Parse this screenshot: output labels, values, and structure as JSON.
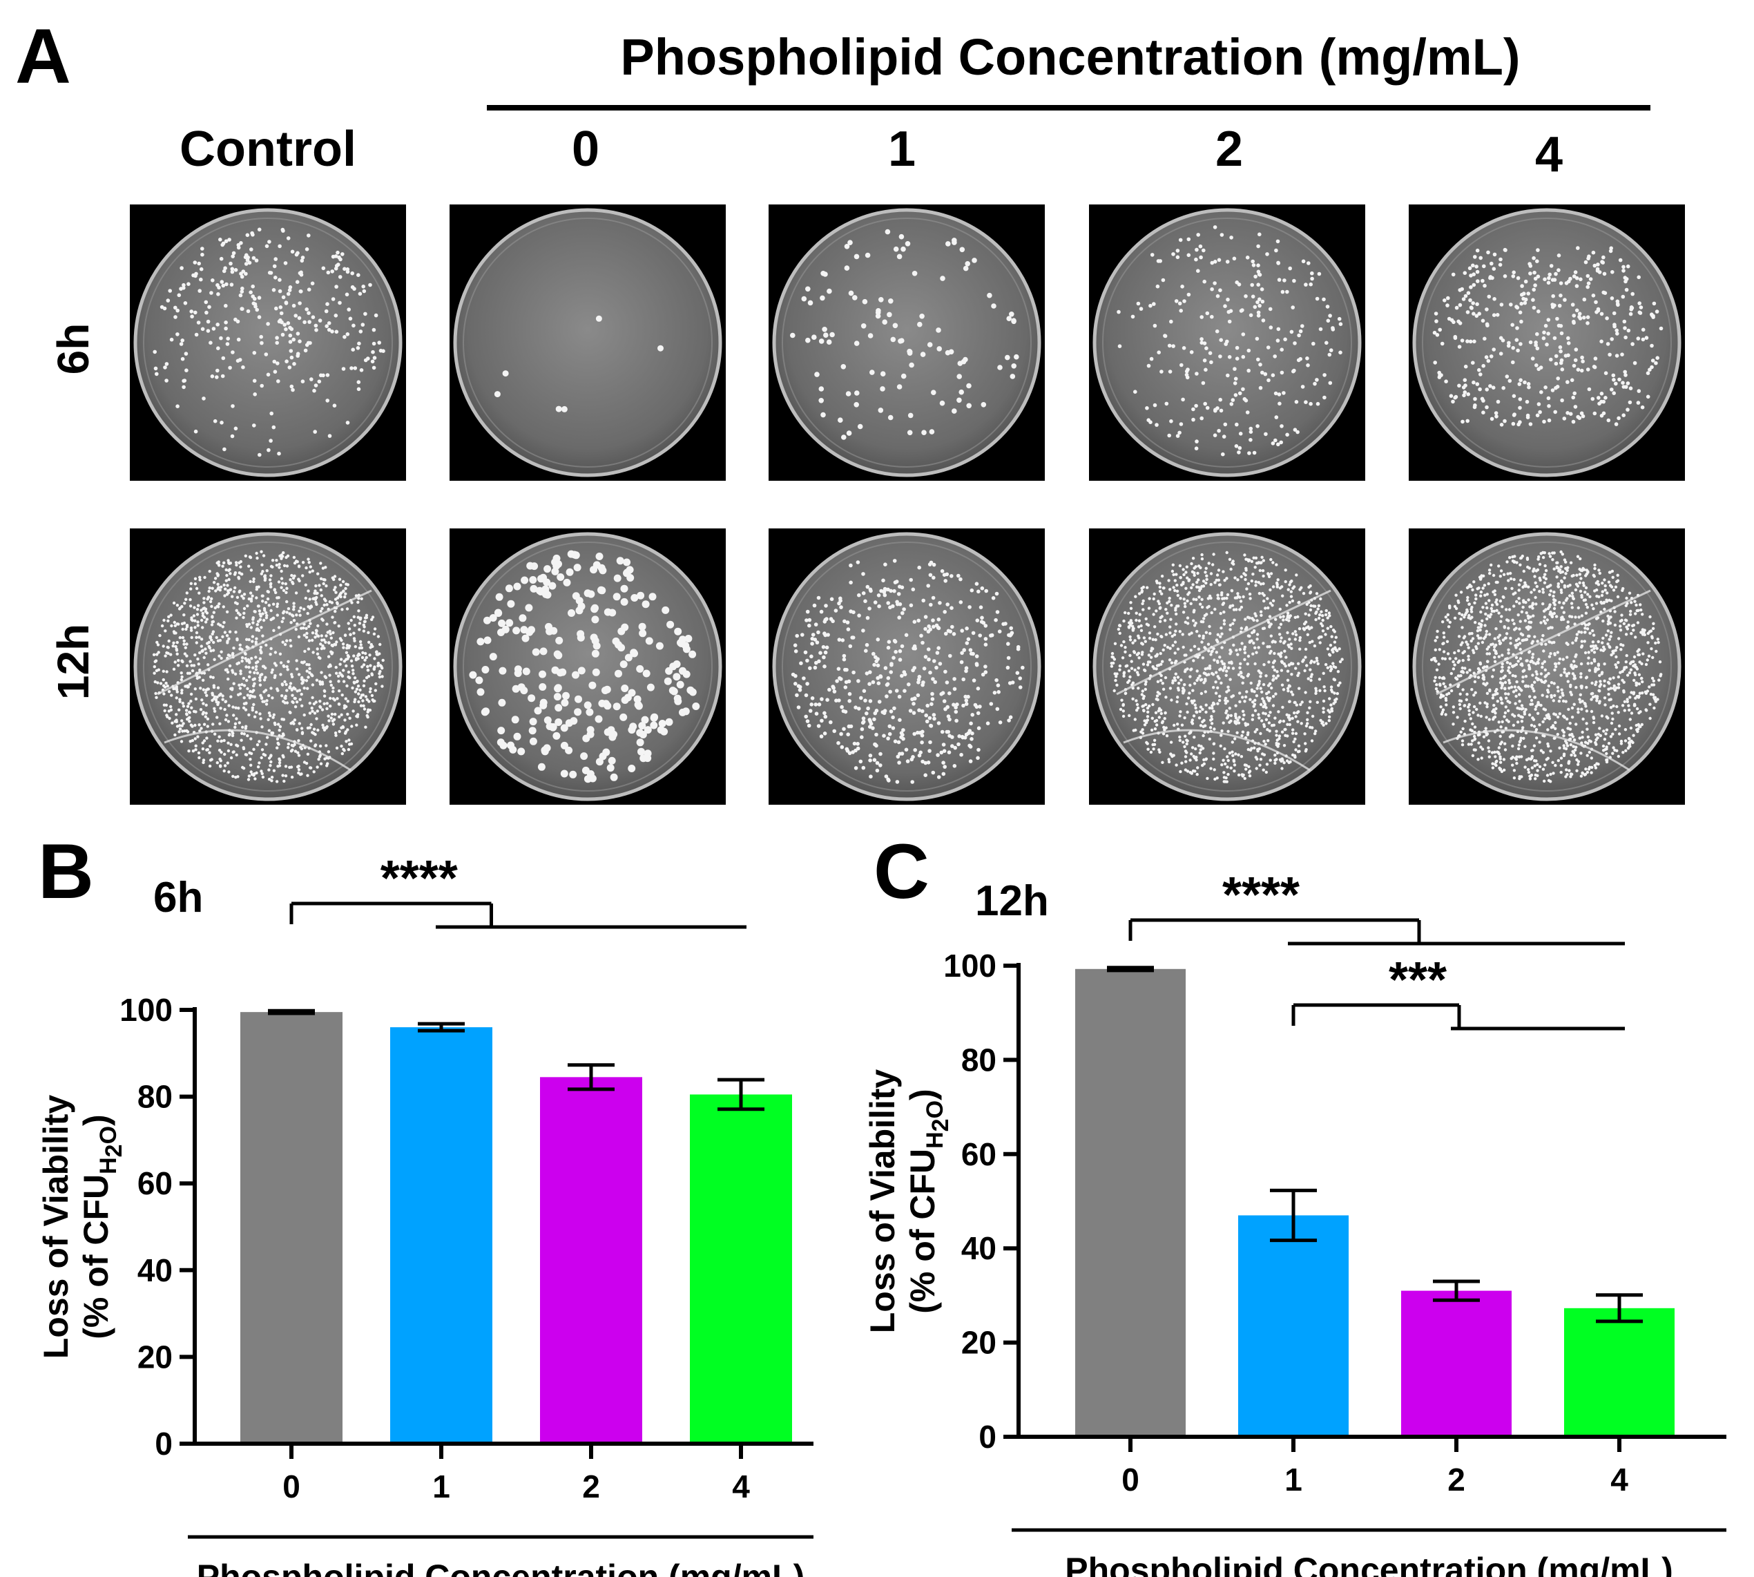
{
  "panel_a": {
    "letter": "A",
    "header": "Phospholipid Concentration (mg/mL)",
    "columns": [
      "Control",
      "0",
      "1",
      "2",
      "4"
    ],
    "rows": [
      "6h",
      "12h"
    ],
    "plates": [
      [
        {
          "name": "plate-6h-control",
          "colonies": 320,
          "pattern": "streak-upper"
        },
        {
          "name": "plate-6h-0",
          "colonies": 6,
          "pattern": "sparse"
        },
        {
          "name": "plate-6h-1",
          "colonies": 110,
          "pattern": "scatter"
        },
        {
          "name": "plate-6h-2",
          "colonies": 260,
          "pattern": "scatter-right"
        },
        {
          "name": "plate-6h-4",
          "colonies": 480,
          "pattern": "dense-band"
        }
      ],
      [
        {
          "name": "plate-12h-control",
          "colonies": 1400,
          "pattern": "lawn"
        },
        {
          "name": "plate-12h-0",
          "colonies": 260,
          "pattern": "large-scatter"
        },
        {
          "name": "plate-12h-1",
          "colonies": 520,
          "pattern": "scatter-lower"
        },
        {
          "name": "plate-12h-2",
          "colonies": 1300,
          "pattern": "lawn"
        },
        {
          "name": "plate-12h-4",
          "colonies": 1500,
          "pattern": "lawn"
        }
      ]
    ]
  },
  "chart_data": [
    {
      "panel": "B",
      "type": "bar",
      "title": "6h",
      "categories": [
        "0",
        "1",
        "2",
        "4"
      ],
      "values": [
        99.5,
        96.0,
        84.5,
        80.5
      ],
      "errors": [
        0.3,
        0.8,
        2.8,
        3.4
      ],
      "colors": [
        "#808080",
        "#00a2ff",
        "#cc00ee",
        "#00ff22"
      ],
      "ylabel_line1": "Loss of Viability",
      "ylabel_line2_pre": "(% of CFU",
      "ylabel_sub": "H",
      "ylabel_sub2": "2",
      "ylabel_sub3": "O",
      "ylabel_line2_post": ")",
      "xlabel": "Phospholipid Concentration (mg/mL)",
      "ylim": [
        0,
        100
      ],
      "yticks": [
        0,
        20,
        40,
        60,
        80,
        100
      ],
      "significance": [
        {
          "label": "****",
          "from": 0,
          "to_range": [
            1,
            3
          ]
        }
      ]
    },
    {
      "panel": "C",
      "type": "bar",
      "title": "12h",
      "categories": [
        "0",
        "1",
        "2",
        "4"
      ],
      "values": [
        99.3,
        47.0,
        31.0,
        27.3
      ],
      "errors": [
        0.3,
        5.3,
        2.0,
        2.8
      ],
      "colors": [
        "#808080",
        "#00a2ff",
        "#cc00ee",
        "#00ff22"
      ],
      "ylabel_line1": "Loss of Viability",
      "ylabel_line2_pre": "(% of CFU",
      "ylabel_sub": "H",
      "ylabel_sub2": "2",
      "ylabel_sub3": "O",
      "ylabel_line2_post": ")",
      "xlabel": "Phospholipid Concentration (mg/mL)",
      "ylim": [
        0,
        100
      ],
      "yticks": [
        0,
        20,
        40,
        60,
        80,
        100
      ],
      "significance": [
        {
          "label": "****",
          "from": 0,
          "to_range": [
            1,
            3
          ]
        },
        {
          "label": "***",
          "from": 1,
          "to_range": [
            2,
            3
          ]
        }
      ]
    }
  ]
}
